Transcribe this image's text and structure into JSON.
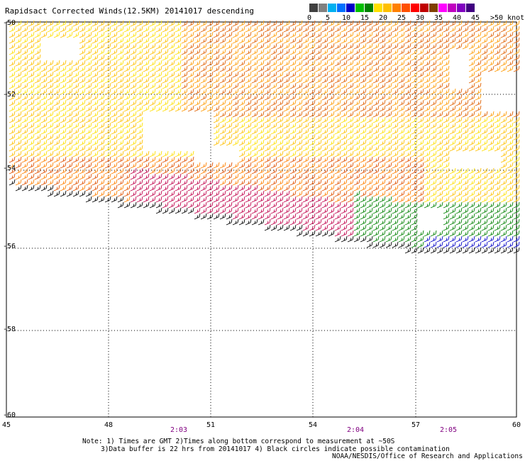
{
  "title": "Rapidsact Corrected Winds(12.5KM) 20141017 descending",
  "legend": {
    "colors": [
      "#404040",
      "#808080",
      "#00b0f0",
      "#0070ff",
      "#0000c8",
      "#00c000",
      "#008000",
      "#ffe000",
      "#ffc000",
      "#ff8000",
      "#ff5000",
      "#ff0000",
      "#c00000",
      "#804000",
      "#ff00ff",
      "#c000c0",
      "#8000c0",
      "#400080"
    ],
    "tick_labels": [
      "0",
      "5",
      "10",
      "15",
      "20",
      "25",
      "30",
      "35",
      "40",
      "45"
    ],
    "units_label": ">50 knots"
  },
  "map": {
    "lat_labels": [
      "-50",
      "-52",
      "-54",
      "-56",
      "-58",
      "-60"
    ],
    "lon_labels": [
      "45",
      "48",
      "51",
      "54",
      "57",
      "60"
    ],
    "time_labels": [
      "2:03",
      "2:04",
      "2:05"
    ]
  },
  "notes": {
    "line1": "Note: 1) Times are GMT 2)Times along bottom correspond to measurement at ~50S",
    "line2": "3)Data buffer is 22 hrs from 20141017 4) Black circles indicate possible contamination",
    "credit": "NOAA/NESDIS/Office of Research and Applications"
  }
}
